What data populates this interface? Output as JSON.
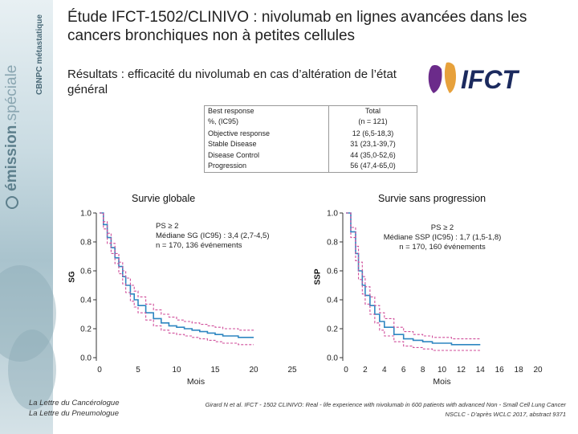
{
  "header": {
    "title": "Étude IFCT-1502/CLINIVO : nivolumab en lignes avancées dans les cancers bronchiques non à petites cellules",
    "subtitle": "Résultats : efficacité du nivolumab en cas d’altération de l’état général"
  },
  "sidebar": {
    "brand_main": "émission",
    "brand_sub": ".spéciale",
    "topic": "CBNPC métastatique"
  },
  "logo": {
    "text": "IFCT",
    "color": "#1b2a5e"
  },
  "table": {
    "col1_header_line1": "Best response",
    "col1_header_line2": "%, (IC95)",
    "col2_header_line1": "Total",
    "col2_header_line2": "(n = 121)",
    "rows": [
      {
        "label": "Objective response",
        "value": "12 (6,5-18,3)"
      },
      {
        "label": "Stable Disease",
        "value": "31 (23,1-39,7)"
      },
      {
        "label": "Disease Control",
        "value": "44 (35,0-52,6)"
      },
      {
        "label": "Progression",
        "value": "56 (47,4-65,0)"
      }
    ]
  },
  "chart_data": [
    {
      "type": "line",
      "title": "Survie globale",
      "xlabel": "Mois",
      "ylabel": "SG",
      "xlim": [
        0,
        25
      ],
      "ylim": [
        0.0,
        1.0
      ],
      "xticks": [
        0,
        5,
        10,
        15,
        20,
        25
      ],
      "xtick_labels": [
        "0",
        "5",
        "10",
        "15",
        "20",
        "25"
      ],
      "yticks": [
        0.0,
        0.2,
        0.4,
        0.6,
        0.8,
        1.0
      ],
      "ytick_labels": [
        "0.0",
        "0.2",
        "0.4",
        "0.6",
        "0.8",
        "1.0"
      ],
      "annotation": [
        "PS ≥ 2",
        "Médiane SG (IC95) : 3,4 (2,7-4,5)",
        "n = 170, 136 événements"
      ],
      "series": [
        {
          "color": "#2e86c1",
          "x": [
            0,
            0.5,
            1,
            1.5,
            2,
            2.5,
            3,
            3.4,
            4,
            4.5,
            5,
            6,
            7,
            8,
            9,
            10,
            11,
            12,
            13,
            14,
            15,
            16,
            17,
            18,
            19,
            20
          ],
          "y": [
            1.0,
            0.92,
            0.83,
            0.76,
            0.69,
            0.63,
            0.56,
            0.5,
            0.44,
            0.4,
            0.36,
            0.31,
            0.27,
            0.24,
            0.22,
            0.21,
            0.2,
            0.19,
            0.18,
            0.17,
            0.16,
            0.15,
            0.15,
            0.14,
            0.14,
            0.14
          ]
        },
        {
          "color": "#d04f9b",
          "x": [
            0,
            0.5,
            1,
            1.5,
            2,
            2.5,
            3,
            3.4,
            4,
            4.5,
            5,
            6,
            7,
            8,
            9,
            10,
            11,
            12,
            13,
            14,
            15,
            16,
            17,
            18,
            19,
            20
          ],
          "y": [
            1.0,
            0.94,
            0.86,
            0.79,
            0.72,
            0.66,
            0.6,
            0.55,
            0.5,
            0.46,
            0.42,
            0.37,
            0.33,
            0.3,
            0.28,
            0.26,
            0.25,
            0.24,
            0.23,
            0.22,
            0.21,
            0.2,
            0.2,
            0.19,
            0.19,
            0.19
          ]
        },
        {
          "color": "#d04f9b",
          "x": [
            0,
            0.5,
            1,
            1.5,
            2,
            2.5,
            3,
            3.4,
            4,
            4.5,
            5,
            6,
            7,
            8,
            9,
            10,
            11,
            12,
            13,
            14,
            15,
            16,
            17,
            18,
            19,
            20
          ],
          "y": [
            1.0,
            0.89,
            0.79,
            0.72,
            0.65,
            0.58,
            0.51,
            0.45,
            0.39,
            0.35,
            0.31,
            0.26,
            0.22,
            0.19,
            0.17,
            0.16,
            0.15,
            0.14,
            0.13,
            0.12,
            0.11,
            0.1,
            0.1,
            0.09,
            0.09,
            0.09
          ]
        }
      ]
    },
    {
      "type": "line",
      "title": "Survie sans progression",
      "xlabel": "Mois",
      "ylabel": "SSP",
      "xlim": [
        0,
        20
      ],
      "ylim": [
        0.0,
        1.0
      ],
      "xticks": [
        0,
        2,
        4,
        6,
        8,
        10,
        12,
        14,
        16,
        18,
        20
      ],
      "xtick_labels": [
        "0",
        "2",
        "4",
        "6",
        "8",
        "10",
        "12",
        "14",
        "16",
        "18",
        "20"
      ],
      "yticks": [
        0.0,
        0.2,
        0.4,
        0.6,
        0.8,
        1.0
      ],
      "ytick_labels": [
        "0.0",
        "0.2",
        "0.4",
        "0.6",
        "0.8",
        "1.0"
      ],
      "annotation": [
        "PS ≥ 2",
        "Médiane SSP (IC95) : 1,7 (1,5-1,8)",
        "n = 170, 160 événements"
      ],
      "series": [
        {
          "color": "#2e86c1",
          "x": [
            0,
            0.5,
            1,
            1.3,
            1.7,
            2,
            2.5,
            3,
            3.5,
            4,
            5,
            6,
            7,
            8,
            9,
            10,
            11,
            12,
            13,
            14
          ],
          "y": [
            1.0,
            0.87,
            0.72,
            0.6,
            0.5,
            0.43,
            0.36,
            0.3,
            0.25,
            0.21,
            0.16,
            0.13,
            0.12,
            0.11,
            0.1,
            0.1,
            0.09,
            0.09,
            0.09,
            0.09
          ]
        },
        {
          "color": "#d04f9b",
          "x": [
            0,
            0.5,
            1,
            1.3,
            1.7,
            2,
            2.5,
            3,
            3.5,
            4,
            5,
            6,
            7,
            8,
            9,
            10,
            11,
            12,
            13,
            14
          ],
          "y": [
            1.0,
            0.9,
            0.77,
            0.66,
            0.56,
            0.49,
            0.42,
            0.36,
            0.31,
            0.27,
            0.21,
            0.18,
            0.16,
            0.15,
            0.14,
            0.14,
            0.13,
            0.13,
            0.13,
            0.13
          ]
        },
        {
          "color": "#d04f9b",
          "x": [
            0,
            0.5,
            1,
            1.3,
            1.7,
            2,
            2.5,
            3,
            3.5,
            4,
            5,
            6,
            7,
            8,
            9,
            10,
            11,
            12,
            13,
            14
          ],
          "y": [
            1.0,
            0.83,
            0.67,
            0.54,
            0.44,
            0.37,
            0.3,
            0.24,
            0.19,
            0.15,
            0.11,
            0.08,
            0.07,
            0.06,
            0.05,
            0.05,
            0.05,
            0.05,
            0.05,
            0.05
          ]
        }
      ]
    }
  ],
  "footer": {
    "left_line1": "La Lettre du Cancérologue",
    "left_line2": "La Lettre du Pneumologue",
    "right_line1": "Girard N et al. IFCT - 1502 CLINIVO: Real - life experience with nivolumab in 600 patients with advanced Non - Small Cell Lung Cancer",
    "right_line2": "NSCLC - D’après WCLC 2017, abstract 9371"
  }
}
